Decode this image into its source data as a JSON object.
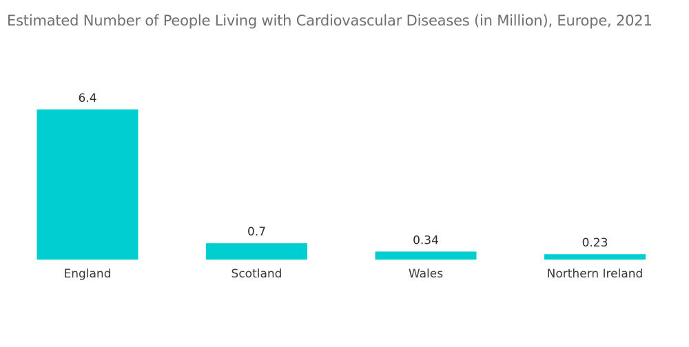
{
  "chart_data": {
    "type": "bar",
    "title": "Estimated Number of People Living with Cardiovascular Diseases (in Million), Europe, 2021",
    "categories": [
      "England",
      "Scotland",
      "Wales",
      "Northern Ireland"
    ],
    "values": [
      6.4,
      0.7,
      0.34,
      0.23
    ],
    "value_labels": [
      "6.4",
      "0.7",
      "0.34",
      "0.23"
    ],
    "xlabel": "",
    "ylabel": "",
    "ylim": [
      0,
      6.4
    ],
    "grid": false,
    "legend": "none",
    "bar_color": "#00CED1"
  }
}
